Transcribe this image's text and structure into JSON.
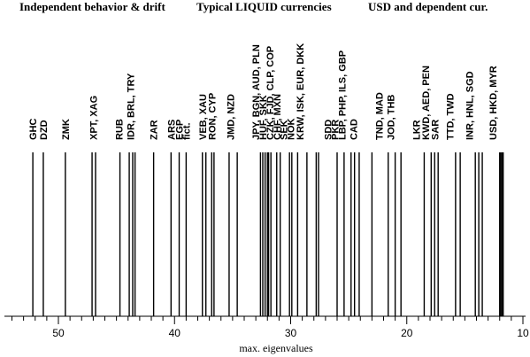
{
  "chart_data": {
    "type": "vertical-line-spectrum",
    "headers": [
      "Independent behavior & drift",
      "Typical LIQUID currencies",
      "USD and dependent cur."
    ],
    "xlabel": "max. eigenvalues",
    "xlim": [
      55,
      10
    ],
    "ticks": [
      50,
      40,
      30,
      20,
      10
    ],
    "lines": [
      52.2,
      51.3,
      49.4,
      47.1,
      46.8,
      44.7,
      43.9,
      43.6,
      43.4,
      41.8,
      40.3,
      39.6,
      39.0,
      37.6,
      37.3,
      36.8,
      36.6,
      35.3,
      34.6,
      32.6,
      32.4,
      32.2,
      32.0,
      31.9,
      31.7,
      31.2,
      30.9,
      30.1,
      29.9,
      29.4,
      28.6,
      27.8,
      27.6,
      26.0,
      25.4,
      24.8,
      24.5,
      24.1,
      23.0,
      21.6,
      21.0,
      20.5,
      18.5,
      17.9,
      17.6,
      17.3,
      15.8,
      15.4,
      14.1,
      13.8,
      13.5,
      12.0,
      11.9,
      11.8,
      11.7
    ],
    "labels": [
      {
        "text": "GHC",
        "x": 52.2
      },
      {
        "text": "DZD",
        "x": 51.3
      },
      {
        "text": "ZMK",
        "x": 49.4
      },
      {
        "text": "XPT, XAG",
        "x": 47.0
      },
      {
        "text": "RUB",
        "x": 44.8
      },
      {
        "text": "IDR, BRL, TRY",
        "x": 43.8
      },
      {
        "text": "ZAR",
        "x": 41.8
      },
      {
        "text": "ARS",
        "x": 40.3
      },
      {
        "text": "EGP",
        "x": 39.6
      },
      {
        "text": "fict.",
        "x": 39.0
      },
      {
        "text": "VEB, XAU",
        "x": 37.6
      },
      {
        "text": "RON, CYP",
        "x": 36.8
      },
      {
        "text": "JMD, NZD",
        "x": 35.2
      },
      {
        "text": "JPY, BGN, AUD, PLN",
        "x": 33.0
      },
      {
        "text": "HUF, SKK",
        "x": 32.4
      },
      {
        "text": "CZK, FJD, CLP, COP",
        "x": 31.8
      },
      {
        "text": "CHF, MXN",
        "x": 31.2
      },
      {
        "text": "SEK",
        "x": 30.6
      },
      {
        "text": "NOK",
        "x": 30.0
      },
      {
        "text": "KRW, ISK, EUR, DKK",
        "x": 29.2
      },
      {
        "text": "SDD",
        "x": 26.8
      },
      {
        "text": "PKR",
        "x": 26.2
      },
      {
        "text": "LBP, PHP, ILS, GBP",
        "x": 25.6
      },
      {
        "text": "CAD",
        "x": 24.6
      },
      {
        "text": "TND, MAD",
        "x": 22.4
      },
      {
        "text": "JOD, THB",
        "x": 21.4
      },
      {
        "text": "LKR",
        "x": 19.2
      },
      {
        "text": "KWD, AED, PEN",
        "x": 18.4
      },
      {
        "text": "SAR",
        "x": 17.6
      },
      {
        "text": "TTD, TWD",
        "x": 16.3
      },
      {
        "text": "INR, HNL, SGD",
        "x": 14.6
      },
      {
        "text": "USD, HKD, MYR",
        "x": 12.6
      }
    ]
  }
}
